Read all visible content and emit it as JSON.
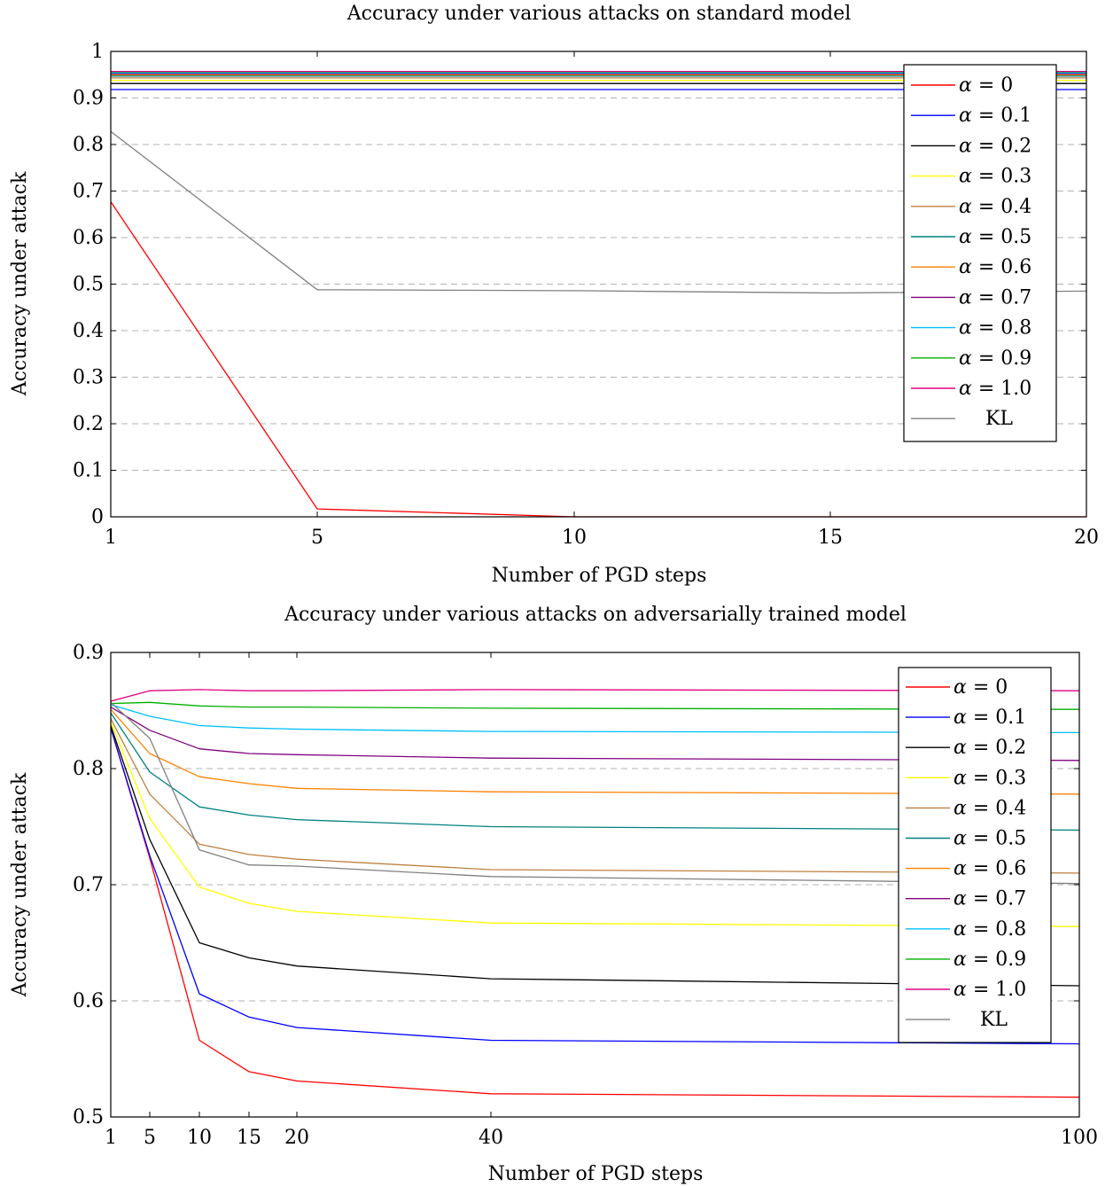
{
  "chart_data": [
    {
      "type": "line",
      "title": "Accuracy under various attacks on standard model",
      "xlabel": "Number of PGD steps",
      "ylabel": "Accuracy under attack",
      "x": [
        1,
        5,
        10,
        15,
        20
      ],
      "xlim": [
        1,
        20
      ],
      "ylim": [
        0,
        1
      ],
      "xticks": [
        "1",
        "5",
        "10",
        "15",
        "20"
      ],
      "yticks": [
        "0",
        "0.1",
        "0.2",
        "0.3",
        "0.4",
        "0.5",
        "0.6",
        "0.7",
        "0.8",
        "0.9",
        "1"
      ],
      "grid": "horizontal dashed",
      "legend_position": "top-right",
      "series": [
        {
          "name": "α = 0",
          "color": "#ff0000",
          "values": [
            0.677,
            0.017,
            0.0,
            0.0,
            0.0
          ]
        },
        {
          "name": "α = 0.1",
          "color": "#0000ff",
          "values": [
            0.918,
            0.918,
            0.918,
            0.918,
            0.918
          ]
        },
        {
          "name": "α = 0.2",
          "color": "#000000",
          "values": [
            0.931,
            0.931,
            0.931,
            0.931,
            0.931
          ]
        },
        {
          "name": "α = 0.3",
          "color": "#ffff00",
          "values": [
            0.938,
            0.938,
            0.938,
            0.938,
            0.938
          ]
        },
        {
          "name": "α = 0.4",
          "color": "#bf8040",
          "values": [
            0.943,
            0.943,
            0.943,
            0.943,
            0.943
          ]
        },
        {
          "name": "α = 0.5",
          "color": "#008080",
          "values": [
            0.947,
            0.947,
            0.947,
            0.947,
            0.947
          ]
        },
        {
          "name": "α = 0.6",
          "color": "#ff8000",
          "values": [
            0.95,
            0.95,
            0.95,
            0.95,
            0.95
          ]
        },
        {
          "name": "α = 0.7",
          "color": "#800080",
          "values": [
            0.952,
            0.952,
            0.952,
            0.952,
            0.952
          ]
        },
        {
          "name": "α = 0.8",
          "color": "#00bfff",
          "values": [
            0.954,
            0.954,
            0.954,
            0.954,
            0.954
          ]
        },
        {
          "name": "α = 0.9",
          "color": "#00b000",
          "values": [
            0.956,
            0.956,
            0.956,
            0.956,
            0.956
          ]
        },
        {
          "name": "α = 1.0",
          "color": "#e0007f",
          "values": [
            0.957,
            0.957,
            0.957,
            0.957,
            0.957
          ]
        },
        {
          "name": "KL",
          "color": "#808080",
          "values": [
            0.828,
            0.488,
            0.486,
            0.481,
            0.485
          ]
        }
      ]
    },
    {
      "type": "line",
      "title": "Accuracy under various attacks on adversarially trained model",
      "xlabel": "Number of PGD steps",
      "ylabel": "Accuracy under attack",
      "x": [
        1,
        5,
        10,
        15,
        20,
        40,
        100
      ],
      "xlim": [
        1,
        100
      ],
      "ylim": [
        0.5,
        0.9
      ],
      "xticks": [
        "1",
        "5",
        "10",
        "15",
        "20",
        "40",
        "100"
      ],
      "yticks": [
        "0.5",
        "0.6",
        "0.7",
        "0.8",
        "0.9"
      ],
      "grid": "horizontal dashed",
      "legend_position": "top-right",
      "series": [
        {
          "name": "α = 0",
          "color": "#ff0000",
          "values": [
            0.835,
            0.723,
            0.566,
            0.539,
            0.531,
            0.52,
            0.517
          ]
        },
        {
          "name": "α = 0.1",
          "color": "#0000ff",
          "values": [
            0.835,
            0.725,
            0.606,
            0.586,
            0.577,
            0.566,
            0.563
          ]
        },
        {
          "name": "α = 0.2",
          "color": "#000000",
          "values": [
            0.837,
            0.739,
            0.65,
            0.637,
            0.63,
            0.619,
            0.613
          ]
        },
        {
          "name": "α = 0.3",
          "color": "#ffff00",
          "values": [
            0.84,
            0.757,
            0.698,
            0.684,
            0.677,
            0.667,
            0.664
          ]
        },
        {
          "name": "α = 0.4",
          "color": "#bf8040",
          "values": [
            0.843,
            0.778,
            0.735,
            0.726,
            0.722,
            0.713,
            0.71
          ]
        },
        {
          "name": "α = 0.5",
          "color": "#008080",
          "values": [
            0.848,
            0.797,
            0.767,
            0.76,
            0.756,
            0.75,
            0.747
          ]
        },
        {
          "name": "α = 0.6",
          "color": "#ff8000",
          "values": [
            0.851,
            0.813,
            0.793,
            0.787,
            0.783,
            0.78,
            0.778
          ]
        },
        {
          "name": "α = 0.7",
          "color": "#800080",
          "values": [
            0.853,
            0.833,
            0.817,
            0.813,
            0.812,
            0.809,
            0.807
          ]
        },
        {
          "name": "α = 0.8",
          "color": "#00bfff",
          "values": [
            0.855,
            0.845,
            0.837,
            0.835,
            0.834,
            0.832,
            0.831
          ]
        },
        {
          "name": "α = 0.9",
          "color": "#00b000",
          "values": [
            0.856,
            0.857,
            0.854,
            0.853,
            0.853,
            0.852,
            0.851
          ]
        },
        {
          "name": "α = 1.0",
          "color": "#e0007f",
          "values": [
            0.858,
            0.867,
            0.868,
            0.867,
            0.867,
            0.868,
            0.867
          ]
        },
        {
          "name": "KL",
          "color": "#808080",
          "values": [
            0.857,
            0.826,
            0.73,
            0.717,
            0.716,
            0.707,
            0.701
          ]
        }
      ]
    }
  ]
}
